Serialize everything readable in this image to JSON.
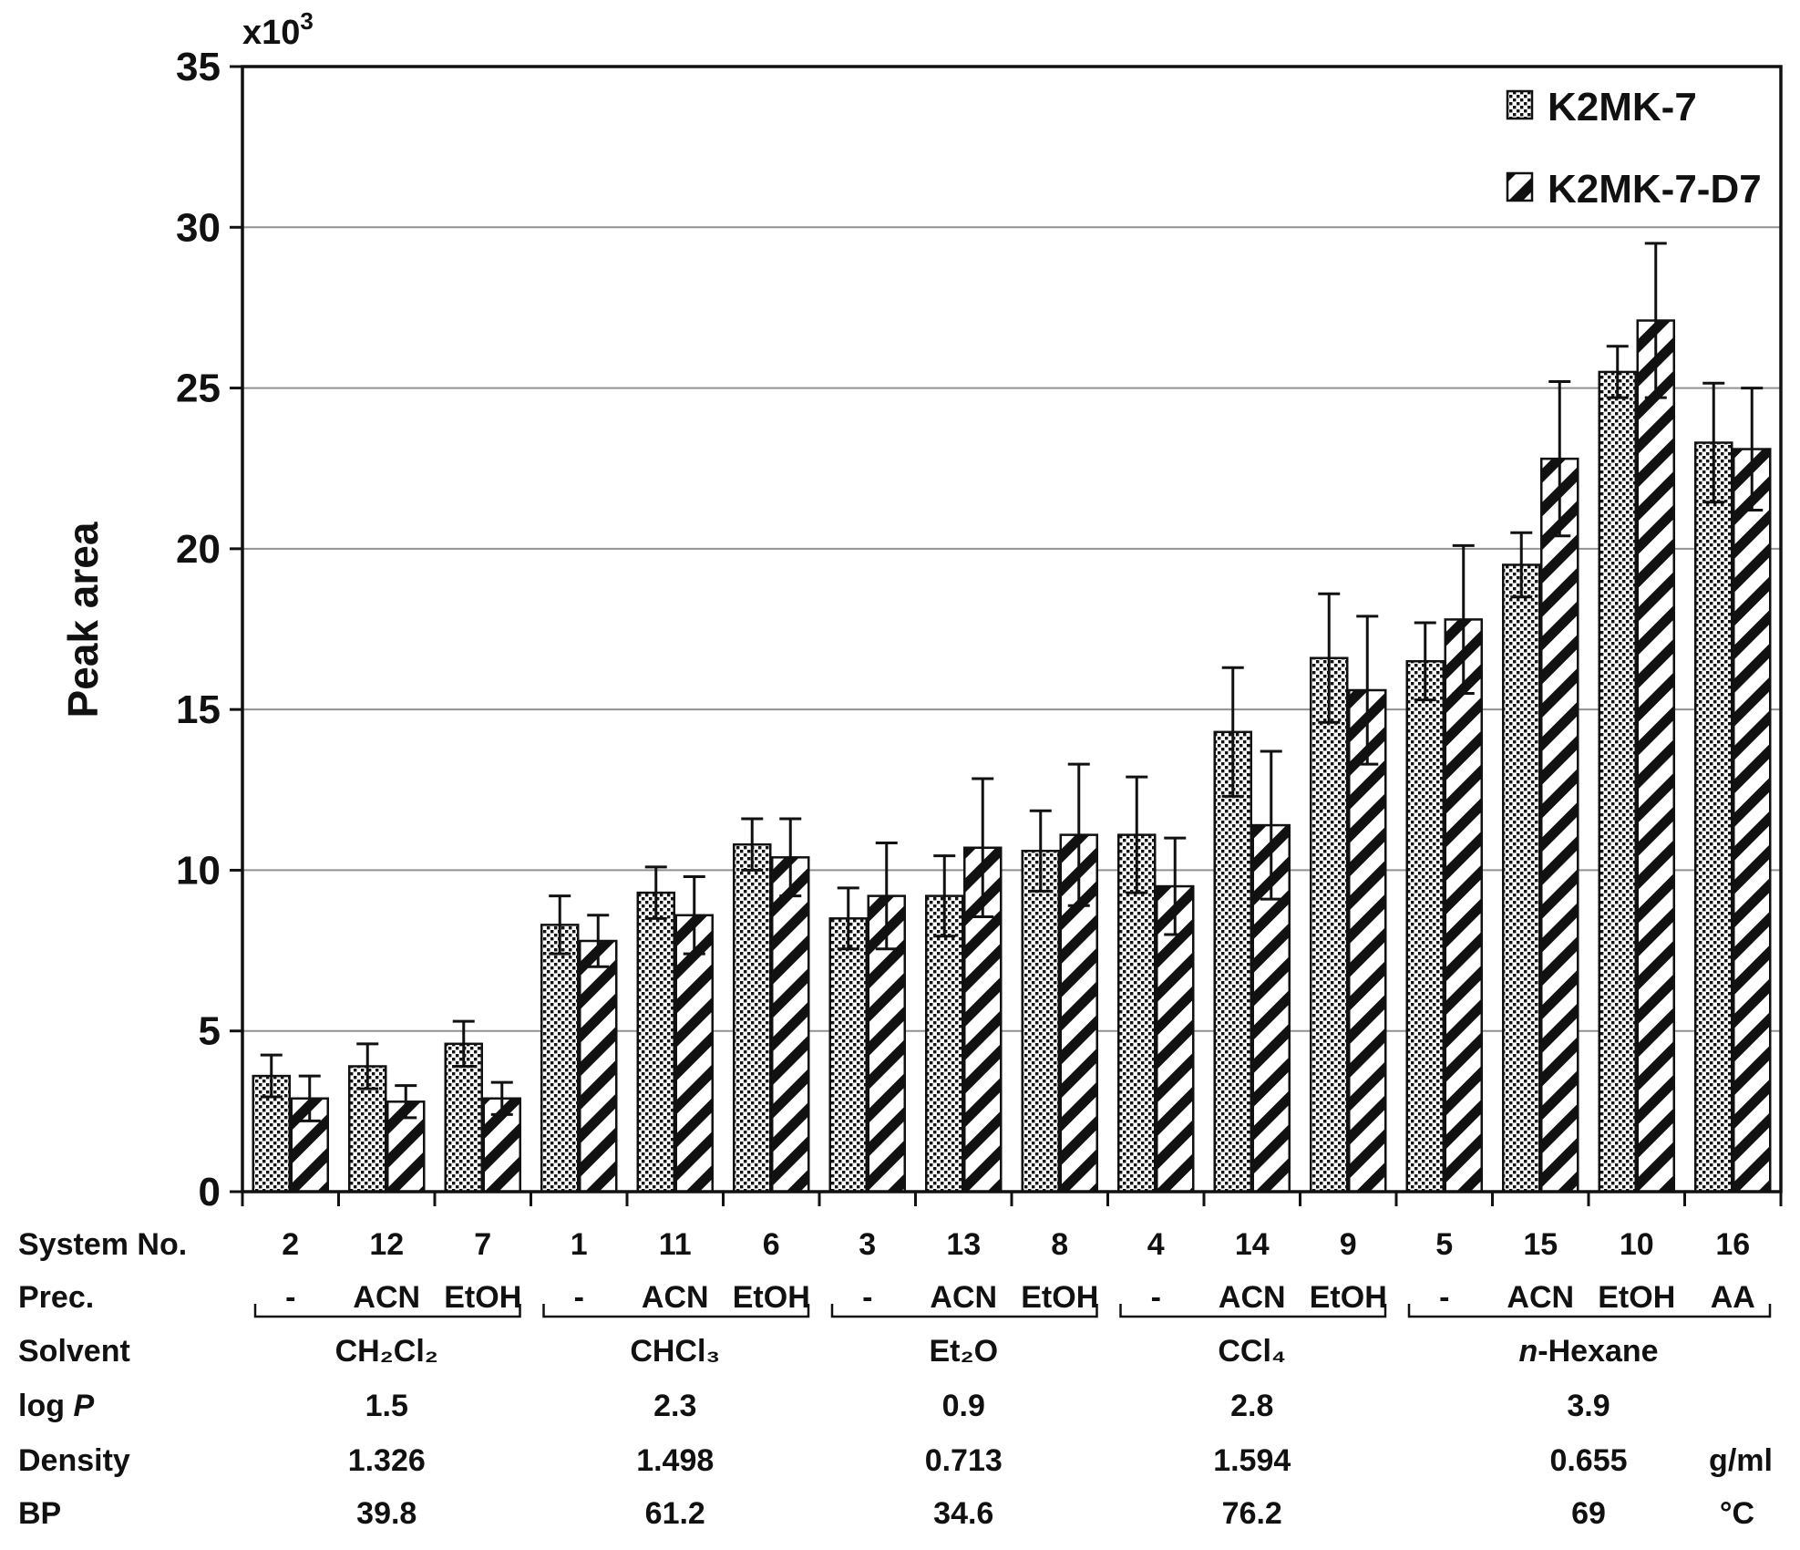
{
  "figure": {
    "y_axis_label": "Peak area",
    "y_multiplier_base": "x10",
    "y_multiplier_exp": "3",
    "legend": [
      {
        "label": "K2MK-7",
        "pattern": "dots"
      },
      {
        "label": "K2MK-7-D7",
        "pattern": "diagonal-hatch"
      }
    ],
    "table_row_labels": [
      "System No.",
      "Prec.",
      "Solvent",
      "log P",
      "Density",
      "BP"
    ],
    "units": {
      "density": "g/ml",
      "bp": "°C"
    },
    "colors": {
      "ink": "#111111",
      "gridline": "#919191",
      "background": "#ffffff"
    }
  },
  "chart_data": {
    "type": "bar",
    "title": "",
    "xlabel": "",
    "ylabel": "Peak area",
    "y_unit_multiplier": "x10^3",
    "ylim": [
      0,
      35
    ],
    "ytick_step": 5,
    "grid": "horizontal",
    "legend_position": "top-right",
    "series_names": [
      "K2MK-7",
      "K2MK-7-D7"
    ],
    "groups": [
      {
        "system": "2",
        "prec": "-",
        "k2mk7": 3.6,
        "k2mk7_err": 0.65,
        "k2mk7_d7": 2.9,
        "k2mk7_d7_err": 0.7
      },
      {
        "system": "12",
        "prec": "ACN",
        "k2mk7": 3.9,
        "k2mk7_err": 0.7,
        "k2mk7_d7": 2.8,
        "k2mk7_d7_err": 0.5
      },
      {
        "system": "7",
        "prec": "EtOH",
        "k2mk7": 4.6,
        "k2mk7_err": 0.7,
        "k2mk7_d7": 2.9,
        "k2mk7_d7_err": 0.5
      },
      {
        "system": "1",
        "prec": "-",
        "k2mk7": 8.3,
        "k2mk7_err": 0.9,
        "k2mk7_d7": 7.8,
        "k2mk7_d7_err": 0.8
      },
      {
        "system": "11",
        "prec": "ACN",
        "k2mk7": 9.3,
        "k2mk7_err": 0.8,
        "k2mk7_d7": 8.6,
        "k2mk7_d7_err": 1.2
      },
      {
        "system": "6",
        "prec": "EtOH",
        "k2mk7": 10.8,
        "k2mk7_err": 0.8,
        "k2mk7_d7": 10.4,
        "k2mk7_d7_err": 1.2
      },
      {
        "system": "3",
        "prec": "-",
        "k2mk7": 8.5,
        "k2mk7_err": 0.95,
        "k2mk7_d7": 9.2,
        "k2mk7_d7_err": 1.65
      },
      {
        "system": "13",
        "prec": "ACN",
        "k2mk7": 9.2,
        "k2mk7_err": 1.25,
        "k2mk7_d7": 10.7,
        "k2mk7_d7_err": 2.15
      },
      {
        "system": "8",
        "prec": "EtOH",
        "k2mk7": 10.6,
        "k2mk7_err": 1.25,
        "k2mk7_d7": 11.1,
        "k2mk7_d7_err": 2.2
      },
      {
        "system": "4",
        "prec": "-",
        "k2mk7": 11.1,
        "k2mk7_err": 1.8,
        "k2mk7_d7": 9.5,
        "k2mk7_d7_err": 1.5
      },
      {
        "system": "14",
        "prec": "ACN",
        "k2mk7": 14.3,
        "k2mk7_err": 2.0,
        "k2mk7_d7": 11.4,
        "k2mk7_d7_err": 2.3
      },
      {
        "system": "9",
        "prec": "EtOH",
        "k2mk7": 16.6,
        "k2mk7_err": 2.0,
        "k2mk7_d7": 15.6,
        "k2mk7_d7_err": 2.3
      },
      {
        "system": "5",
        "prec": "-",
        "k2mk7": 16.5,
        "k2mk7_err": 1.2,
        "k2mk7_d7": 17.8,
        "k2mk7_d7_err": 2.3
      },
      {
        "system": "15",
        "prec": "ACN",
        "k2mk7": 19.5,
        "k2mk7_err": 1.0,
        "k2mk7_d7": 22.8,
        "k2mk7_d7_err": 2.4
      },
      {
        "system": "10",
        "prec": "EtOH",
        "k2mk7": 25.5,
        "k2mk7_err": 0.8,
        "k2mk7_d7": 27.1,
        "k2mk7_d7_err": 2.4
      },
      {
        "system": "16",
        "prec": "AA",
        "k2mk7": 23.3,
        "k2mk7_err": 1.85,
        "k2mk7_d7": 23.1,
        "k2mk7_d7_err": 1.9
      }
    ],
    "clusters": [
      {
        "solvent": "CH₂Cl₂",
        "log_p": "1.5",
        "density": "1.326",
        "bp": "39.8",
        "group_span": [
          0,
          3
        ]
      },
      {
        "solvent": "CHCl₃",
        "log_p": "2.3",
        "density": "1.498",
        "bp": "61.2",
        "group_span": [
          3,
          6
        ]
      },
      {
        "solvent": "Et₂O",
        "log_p": "0.9",
        "density": "0.713",
        "bp": "34.6",
        "group_span": [
          6,
          9
        ]
      },
      {
        "solvent": "CCl₄",
        "log_p": "2.8",
        "density": "1.594",
        "bp": "76.2",
        "group_span": [
          9,
          12
        ]
      },
      {
        "solvent": "n-Hexane",
        "log_p": "3.9",
        "density": "0.655",
        "bp": "69",
        "group_span": [
          12,
          16
        ]
      }
    ]
  }
}
